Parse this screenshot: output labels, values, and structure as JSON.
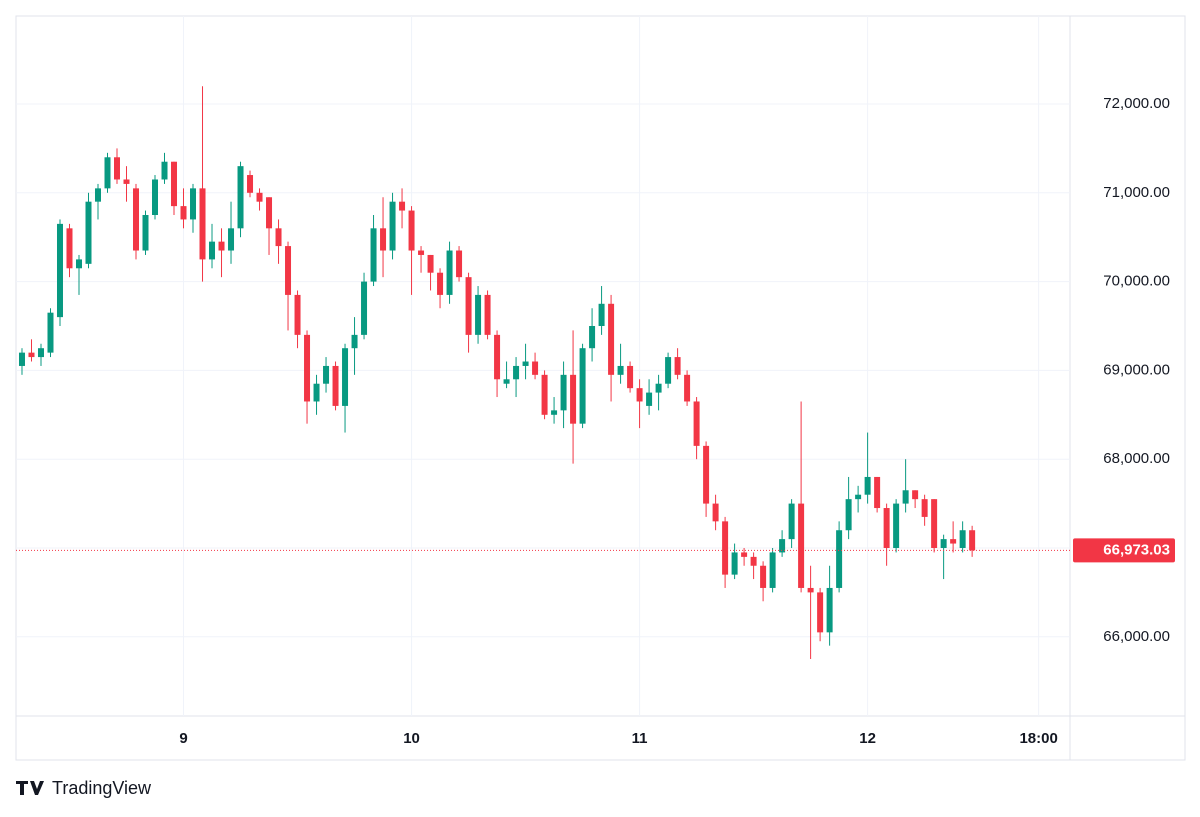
{
  "chart_data": {
    "type": "candlestick",
    "brand": "TradingView",
    "up_color": "#089981",
    "down_color": "#f23645",
    "grid": true,
    "ylim": [
      65108,
      72991
    ],
    "yticks": [
      {
        "value": 66000,
        "label": "66,000.00"
      },
      {
        "value": 67000,
        "label": "67,000.00"
      },
      {
        "value": 68000,
        "label": "68,000.00"
      },
      {
        "value": 69000,
        "label": "69,000.00"
      },
      {
        "value": 70000,
        "label": "70,000.00"
      },
      {
        "value": 71000,
        "label": "71,000.00"
      },
      {
        "value": 72000,
        "label": "72,000.00"
      }
    ],
    "xlim": [
      -0.63,
      110.3
    ],
    "xticks": [
      {
        "value": 17,
        "label": "9"
      },
      {
        "value": 41,
        "label": "10"
      },
      {
        "value": 65,
        "label": "11"
      },
      {
        "value": 89,
        "label": "12"
      },
      {
        "value": 107,
        "label": "18:00"
      }
    ],
    "last_price": {
      "value": 66973.03,
      "label": "66,973.03"
    },
    "open": [
      69050,
      69200,
      69150,
      69200,
      69600,
      70600,
      70150,
      70200,
      70900,
      71050,
      71400,
      71150,
      71050,
      70350,
      70750,
      71150,
      71350,
      70850,
      70700,
      71050,
      70250,
      70450,
      70350,
      70600,
      71200,
      71000,
      70950,
      70600,
      70400,
      69850,
      69400,
      68650,
      68850,
      69050,
      68600,
      69250,
      69400,
      70000,
      70600,
      70350,
      70900,
      70800,
      70350,
      70300,
      70100,
      69850,
      70350,
      70050,
      69400,
      69850,
      69400,
      68850,
      68900,
      69050,
      69100,
      68950,
      68500,
      68550,
      68950,
      68400,
      69250,
      69500,
      69750,
      68950,
      69050,
      68800,
      68600,
      68750,
      68850,
      69150,
      68950,
      68650,
      68150,
      67500,
      67300,
      66700,
      66950,
      66900,
      66800,
      66550,
      66950,
      67100,
      67500,
      66550,
      66500,
      66050,
      66550,
      67200,
      67550,
      67600,
      67800,
      67450,
      67000,
      67500,
      67650,
      67550,
      67550,
      67000,
      67100,
      67000,
      67200
    ],
    "high": [
      69250,
      69350,
      69300,
      69700,
      70700,
      70650,
      70300,
      71000,
      71100,
      71450,
      71500,
      71300,
      71100,
      70800,
      71200,
      71450,
      71350,
      71050,
      71100,
      72200,
      70650,
      70600,
      70900,
      71350,
      71250,
      71050,
      70950,
      70700,
      70450,
      69900,
      69450,
      68950,
      69150,
      69100,
      69300,
      69600,
      70100,
      70750,
      70950,
      71000,
      71050,
      70850,
      70400,
      70300,
      70150,
      70450,
      70400,
      70100,
      69950,
      69900,
      69450,
      69100,
      69150,
      69300,
      69200,
      69000,
      68700,
      69100,
      69450,
      69300,
      69700,
      69950,
      69850,
      69300,
      69100,
      68900,
      68900,
      68950,
      69200,
      69250,
      69000,
      68700,
      68200,
      67600,
      67350,
      67050,
      67000,
      66950,
      66850,
      67000,
      67200,
      67550,
      68650,
      66800,
      66550,
      66800,
      67300,
      67800,
      67700,
      68300,
      67800,
      67500,
      67550,
      68000,
      67650,
      67600,
      67550,
      67150,
      67300,
      67300,
      67250
    ],
    "low": [
      68950,
      69100,
      69050,
      69150,
      69500,
      70050,
      69850,
      70150,
      70700,
      71000,
      71100,
      70900,
      70250,
      70300,
      70700,
      71100,
      70750,
      70600,
      70550,
      70000,
      70150,
      70050,
      70200,
      70500,
      70950,
      70800,
      70300,
      70200,
      69450,
      69250,
      68400,
      68500,
      68750,
      68550,
      68300,
      68950,
      69350,
      69950,
      70050,
      70250,
      70600,
      69850,
      70100,
      69900,
      69700,
      69750,
      70000,
      69200,
      69300,
      69350,
      68700,
      68800,
      68700,
      68900,
      68900,
      68450,
      68400,
      68350,
      67950,
      68350,
      69100,
      69400,
      68650,
      68850,
      68750,
      68350,
      68500,
      68550,
      68800,
      68900,
      68600,
      68000,
      67350,
      67200,
      66550,
      66650,
      66800,
      66650,
      66400,
      66500,
      66900,
      67000,
      66500,
      65750,
      65950,
      65900,
      66500,
      67100,
      67400,
      67500,
      67400,
      66800,
      66950,
      67400,
      67450,
      67250,
      66950,
      66650,
      66950,
      66950,
      66900
    ],
    "close": [
      69200,
      69150,
      69250,
      69650,
      70650,
      70150,
      70250,
      70900,
      71050,
      71400,
      71150,
      71100,
      70350,
      70750,
      71150,
      71350,
      70850,
      70700,
      71050,
      70250,
      70450,
      70350,
      70600,
      71300,
      71000,
      70900,
      70600,
      70400,
      69850,
      69400,
      68650,
      68850,
      69050,
      68600,
      69250,
      69400,
      70000,
      70600,
      70350,
      70900,
      70800,
      70350,
      70300,
      70100,
      69850,
      70350,
      70050,
      69400,
      69850,
      69400,
      68900,
      68900,
      69050,
      69100,
      68950,
      68500,
      68550,
      68950,
      68400,
      69250,
      69500,
      69750,
      68950,
      69050,
      68800,
      68650,
      68750,
      68850,
      69150,
      68950,
      68650,
      68150,
      67500,
      67300,
      66700,
      66950,
      66900,
      66800,
      66550,
      66950,
      67100,
      67500,
      66550,
      66500,
      66050,
      66550,
      67200,
      67550,
      67600,
      67800,
      67450,
      67000,
      67500,
      67650,
      67550,
      67350,
      67000,
      67100,
      67050,
      67200,
      66973.03
    ]
  }
}
